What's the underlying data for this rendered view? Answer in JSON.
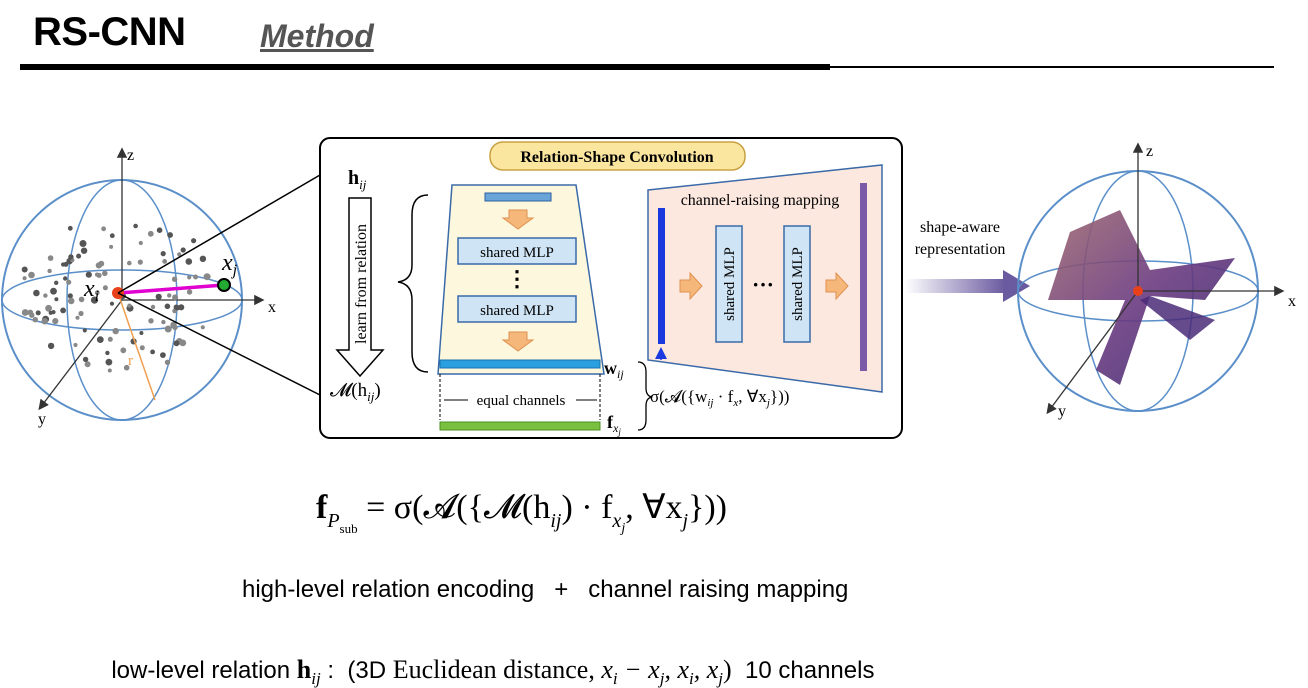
{
  "header": {
    "title": "RS-CNN",
    "subtitle": "Method"
  },
  "diagram": {
    "left_sphere": {
      "axis_z": "z",
      "axis_x": "x",
      "axis_y": "y",
      "point_i": "x",
      "point_i_sub": "i",
      "point_j": "x",
      "point_j_sub": "j",
      "radius": "r"
    },
    "box": {
      "header_label": "Relation-Shape Convolution",
      "h_label": "h",
      "h_sub": "ij",
      "learn_label": "learn from relation",
      "m_label": "𝓜(h",
      "m_sub": "ij",
      "m_close": ")",
      "mlp1": "shared MLP",
      "mlp_dots": "⋮",
      "mlp2": "shared MLP",
      "w_label": "w",
      "w_sub": "ij",
      "f_label": "f",
      "f_sub": "x",
      "f_sub2": "j",
      "equal_channels": "equal channels",
      "sigma_expr": "σ(𝓐({w",
      "sigma_mid": " · f",
      "sigma_end": ", ∀x",
      "sigma_close": "}))",
      "channel_raising": "channel-raising mapping",
      "crm_mlp1": "shared MLP",
      "crm_dots": "···",
      "crm_mlp2": "shared MLP"
    },
    "shape_aware": {
      "line1": "shape-aware",
      "line2": "representation"
    },
    "right_sphere": {
      "axis_z": "z",
      "axis_x": "x",
      "axis_y": "y"
    }
  },
  "formula": {
    "lhs": "f",
    "lhs_sub": "P",
    "lhs_subsub": "sub",
    "rhs": "= σ(𝓐({𝓜(h",
    "rhs_sub": "ij",
    "rhs_mid": ") · f",
    "rhs_sub2": "x",
    "rhs_sub2b": "j",
    "rhs_end": ", ∀x",
    "rhs_sub3": "j",
    "rhs_close": "}))"
  },
  "text_lines": {
    "line1": "high-level relation encoding   +   channel raising mapping",
    "line2_a": "low-level relation ",
    "line2_h": "h",
    "line2_hsub": "ij",
    "line2_b": " :  (3D ",
    "line2_c": "Euclidean distance, ",
    "line2_d": "x",
    "line2_d_sub": "i",
    "line2_e": " − x",
    "line2_e_sub": "j",
    "line2_f": ", x",
    "line2_f_sub": "i",
    "line2_g": ", x",
    "line2_g_sub": "j",
    "line2_h2": ")",
    "line2_tail": "  10 channels"
  },
  "colors": {
    "sphere": "#5b8fc9",
    "accent_red": "#e8411a",
    "magenta": "#e000d0",
    "green": "#22aa33",
    "orange_radius": "#f0a050",
    "mlp_fill": "#cfe4f4",
    "trapezoid_fill": "#fdf8dd",
    "crm_fill": "#fde8e0",
    "arrow_orange": "#f5b87a",
    "purple": "#7a5aa8",
    "blue_bar": "#1a3ae0",
    "header_bg": "#fbe6a0"
  }
}
